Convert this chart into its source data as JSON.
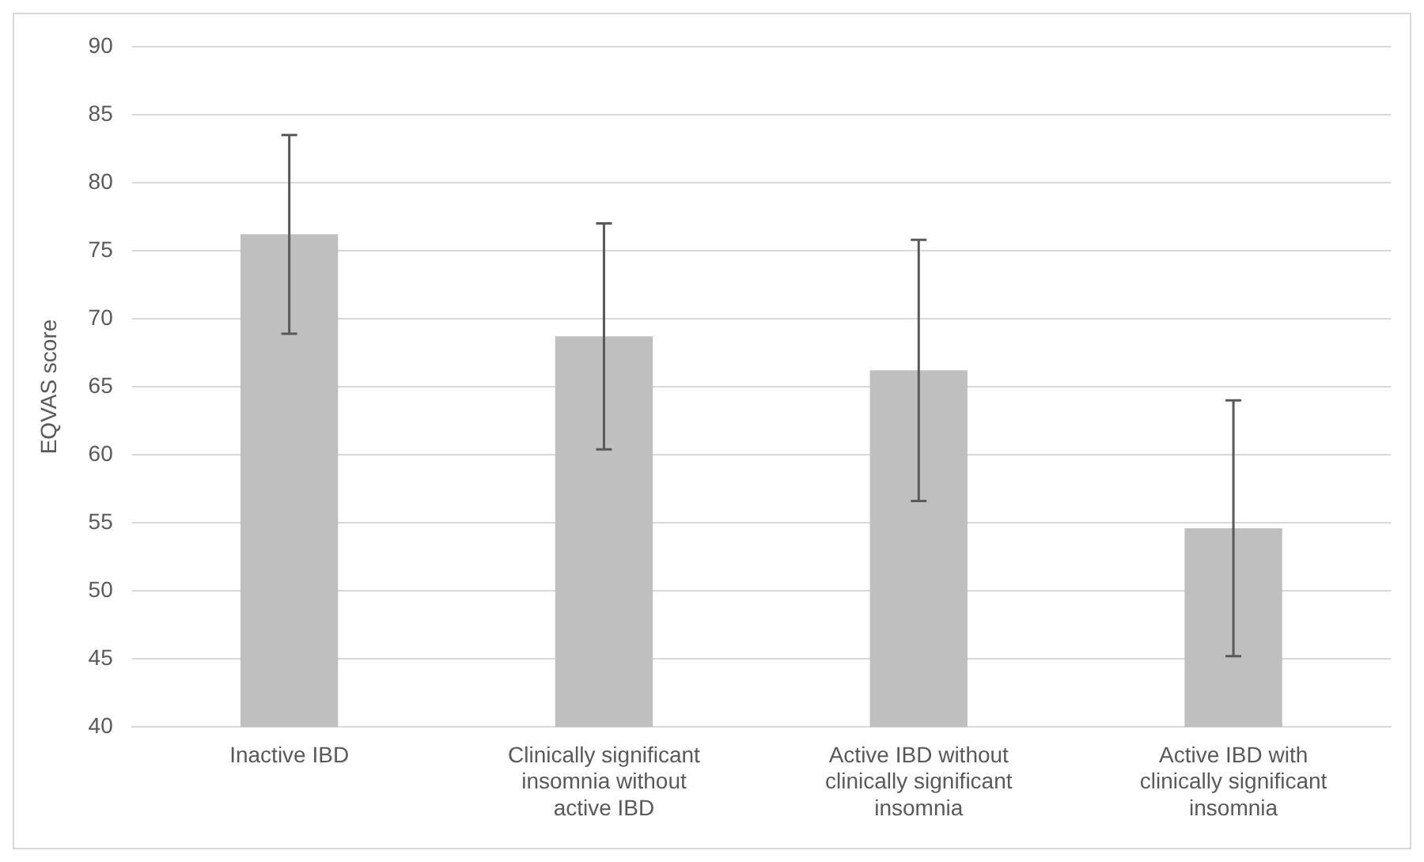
{
  "chart_data": {
    "type": "bar",
    "ylabel": "EQVAS score",
    "categories": [
      "Inactive IBD",
      "Clinically significant insomnia without active IBD",
      "Active IBD without clinically significant insomnia",
      "Active IBD with clinically significant insomnia"
    ],
    "values": [
      76.2,
      68.7,
      66.2,
      54.6
    ],
    "errors": [
      7.3,
      8.3,
      9.6,
      9.4
    ],
    "color": "#bfbfbf",
    "ylim": [
      40,
      90
    ],
    "yticks": [
      40,
      45,
      50,
      55,
      60,
      65,
      70,
      75,
      80,
      85,
      90
    ],
    "grid": "y",
    "legend": false
  }
}
